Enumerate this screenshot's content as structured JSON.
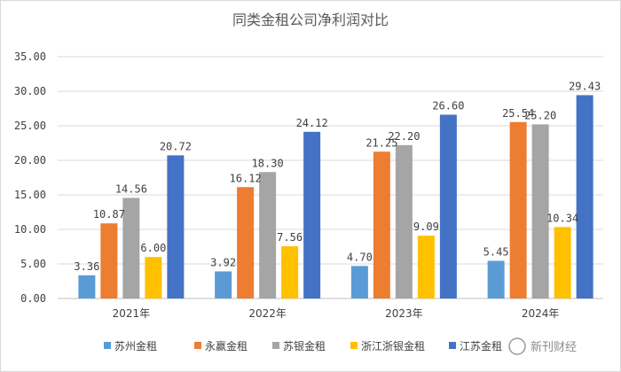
{
  "chart_data": {
    "type": "bar",
    "title": "同类金租公司净利润对比",
    "categories": [
      "2021年",
      "2022年",
      "2023年",
      "2024年"
    ],
    "ylim": [
      0,
      35
    ],
    "yticks": [
      "0.00",
      "5.00",
      "10.00",
      "15.00",
      "20.00",
      "25.00",
      "30.00",
      "35.00"
    ],
    "grid": true,
    "legend_position": "bottom",
    "series": [
      {
        "name": "苏州金租",
        "color": "#5b9bd5",
        "values": [
          3.36,
          3.92,
          4.7,
          5.45
        ],
        "labels": [
          "3.36",
          "3.92",
          "4.70",
          "5.45"
        ]
      },
      {
        "name": "永赢金租",
        "color": "#ed7d31",
        "values": [
          10.87,
          16.12,
          21.25,
          25.54
        ],
        "labels": [
          "10.87",
          "16.12",
          "21.25",
          "25.54"
        ]
      },
      {
        "name": "苏银金租",
        "color": "#a5a5a5",
        "values": [
          14.56,
          18.3,
          22.2,
          25.2
        ],
        "labels": [
          "14.56",
          "18.30",
          "22.20",
          "25.20"
        ]
      },
      {
        "name": "浙江浙银金租",
        "color": "#ffc000",
        "values": [
          6.0,
          7.56,
          9.09,
          10.34
        ],
        "labels": [
          "6.00",
          "7.56",
          "9.09",
          "10.34"
        ]
      },
      {
        "name": "江苏金租",
        "color": "#4472c4",
        "values": [
          20.72,
          24.12,
          26.6,
          29.43
        ],
        "labels": [
          "20.72",
          "24.12",
          "26.60",
          "29.43"
        ]
      }
    ]
  },
  "watermark": {
    "text": "新刊财经"
  }
}
